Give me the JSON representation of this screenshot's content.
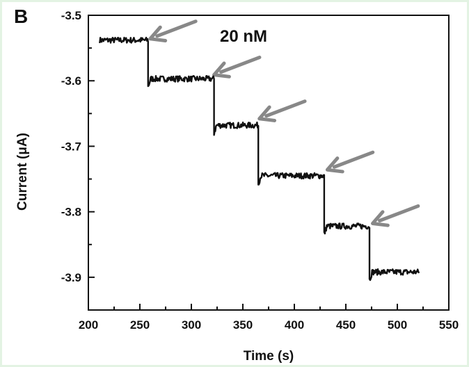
{
  "panel_label": "B",
  "chart_data": {
    "type": "line",
    "title": "",
    "xlabel": "Time (s)",
    "ylabel": "Current (μA)",
    "xlim": [
      200,
      550
    ],
    "ylim": [
      -3.95,
      -3.5
    ],
    "xticks": [
      200,
      250,
      300,
      350,
      400,
      450,
      500,
      550
    ],
    "xtick_labels": [
      "200",
      "250",
      "300",
      "350",
      "400",
      "450",
      "500",
      "550"
    ],
    "yticks": [
      -3.5,
      -3.6,
      -3.7,
      -3.8,
      -3.9
    ],
    "ytick_labels": [
      "-3.5",
      "-3.6",
      "-3.7",
      "-3.8",
      "-3.9"
    ],
    "grid": false,
    "legend": false,
    "line_color": "#111111",
    "arrow_color": "#888888",
    "annotation": "20 nM",
    "steps": [
      {
        "x_start": 211,
        "x_end": 258,
        "current": -3.538
      },
      {
        "x_start": 258,
        "x_end": 322,
        "current": -3.597
      },
      {
        "x_start": 322,
        "x_end": 365,
        "current": -3.668
      },
      {
        "x_start": 365,
        "x_end": 429,
        "current": -3.745
      },
      {
        "x_start": 429,
        "x_end": 473,
        "current": -3.822
      },
      {
        "x_start": 473,
        "x_end": 521,
        "current": -3.892
      }
    ],
    "injection_arrows": [
      {
        "x": 258,
        "y": -3.538
      },
      {
        "x": 320,
        "y": -3.593
      },
      {
        "x": 364,
        "y": -3.66
      },
      {
        "x": 430,
        "y": -3.738
      },
      {
        "x": 474,
        "y": -3.82
      }
    ]
  }
}
